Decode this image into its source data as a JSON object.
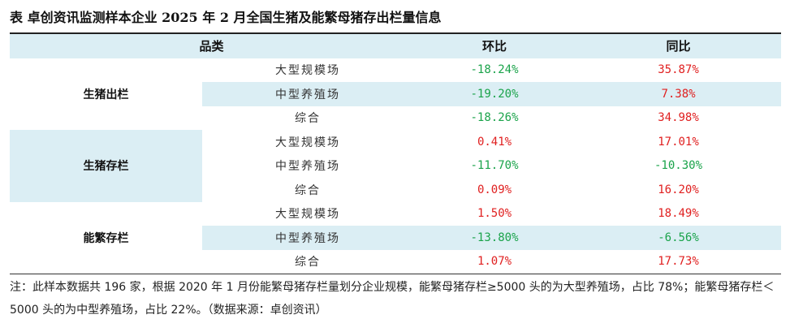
{
  "title": "表 卓创资讯监测样本企业 2025 年 2 月全国生猪及能繁母猪存出栏量信息",
  "header": {
    "category": "品类",
    "mom": "环比",
    "yoy": "同比"
  },
  "groups": [
    {
      "name": "生猪出栏",
      "rows": [
        {
          "sub": "大型规模场",
          "mom": "-18.24%",
          "yoy": "35.87%"
        },
        {
          "sub": "中型养殖场",
          "mom": "-19.20%",
          "yoy": "7.38%"
        },
        {
          "sub": "综合",
          "mom": "-18.26%",
          "yoy": "34.98%"
        }
      ]
    },
    {
      "name": "生猪存栏",
      "rows": [
        {
          "sub": "大型规模场",
          "mom": "0.41%",
          "yoy": "17.01%"
        },
        {
          "sub": "中型养殖场",
          "mom": "-11.70%",
          "yoy": "-10.30%"
        },
        {
          "sub": "综合",
          "mom": "0.09%",
          "yoy": "16.20%"
        }
      ]
    },
    {
      "name": "能繁存栏",
      "rows": [
        {
          "sub": "大型规模场",
          "mom": "1.50%",
          "yoy": "18.49%"
        },
        {
          "sub": "中型养殖场",
          "mom": "-13.80%",
          "yoy": "-6.56%"
        },
        {
          "sub": "综合",
          "mom": "1.07%",
          "yoy": "17.73%"
        }
      ]
    }
  ],
  "note": "注：此样本数据共 196 家，根据 2020 年 1 月份能繁母猪存栏量划分企业规模，能繁母猪存栏≥5000 头的为大型养殖场，占比 78%；能繁母猪存栏＜5000 头的为中型养殖场，占比 22%。（数据来源：卓创资讯）",
  "colors": {
    "positive": "#e02020",
    "negative": "#1aa34a",
    "band": "#dbeef4"
  }
}
